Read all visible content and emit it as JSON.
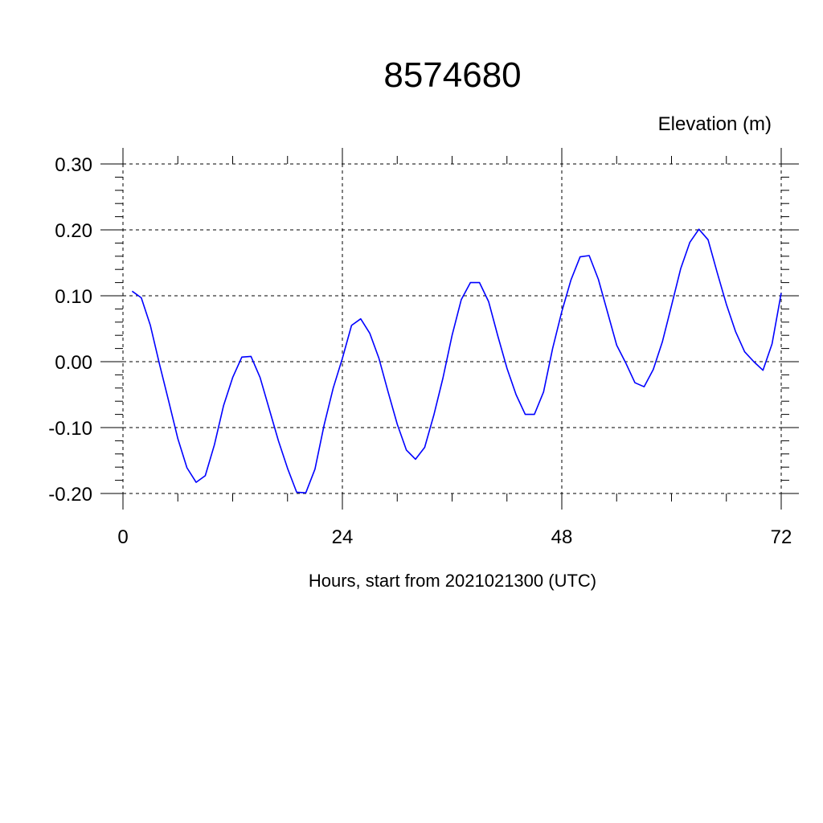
{
  "chart_data": {
    "type": "line",
    "title": "8574680",
    "ylabel": "Elevation (m)",
    "xlabel": "Hours, start from 2021021300 (UTC)",
    "xlim": [
      0,
      72
    ],
    "ylim": [
      -0.2,
      0.3
    ],
    "x_ticks": [
      0,
      24,
      48,
      72
    ],
    "x_tick_labels": [
      "0",
      "24",
      "48",
      "72"
    ],
    "y_ticks": [
      -0.2,
      -0.1,
      0.0,
      0.1,
      0.2,
      0.3
    ],
    "y_tick_labels": [
      "-0.20",
      "-0.10",
      "0.00",
      "0.10",
      "0.20",
      "0.30"
    ],
    "grid": true,
    "series": [
      {
        "color": "#0000ff",
        "x": [
          1,
          2,
          3,
          4,
          5,
          6,
          7,
          8,
          9,
          10,
          11,
          12,
          13,
          14,
          15,
          16,
          17,
          18,
          19,
          20,
          21,
          22,
          23,
          24,
          25,
          26,
          27,
          28,
          29,
          30,
          31,
          32,
          33,
          34,
          35,
          36,
          37,
          38,
          39,
          40,
          41,
          42,
          43,
          44,
          45,
          46,
          47,
          48,
          49,
          50,
          51,
          52,
          53,
          54,
          55,
          56,
          57,
          58,
          59,
          60,
          61,
          62,
          63,
          64,
          65,
          66,
          67,
          68,
          69,
          70,
          71,
          72
        ],
        "values": [
          0.107,
          0.097,
          0.055,
          -0.004,
          -0.06,
          -0.117,
          -0.161,
          -0.183,
          -0.173,
          -0.126,
          -0.067,
          -0.024,
          0.007,
          0.008,
          -0.024,
          -0.072,
          -0.12,
          -0.162,
          -0.198,
          -0.199,
          -0.163,
          -0.096,
          -0.04,
          0.005,
          0.055,
          0.065,
          0.043,
          0.005,
          -0.046,
          -0.095,
          -0.134,
          -0.148,
          -0.13,
          -0.081,
          -0.025,
          0.04,
          0.094,
          0.12,
          0.12,
          0.091,
          0.039,
          -0.01,
          -0.05,
          -0.08,
          -0.08,
          -0.046,
          0.02,
          0.076,
          0.124,
          0.159,
          0.161,
          0.125,
          0.075,
          0.025,
          -0.002,
          -0.032,
          -0.038,
          -0.012,
          0.03,
          0.085,
          0.141,
          0.181,
          0.201,
          0.185,
          0.135,
          0.087,
          0.046,
          0.015,
          0.0,
          -0.013,
          0.027,
          0.104
        ]
      }
    ]
  }
}
